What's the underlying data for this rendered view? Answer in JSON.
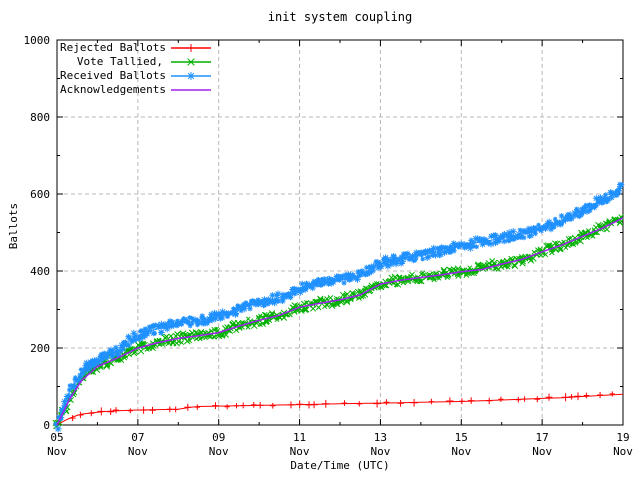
{
  "chart_data": {
    "type": "line",
    "title": "init system coupling",
    "xlabel": "Date/Time (UTC)",
    "ylabel": "Ballots",
    "ylim": [
      0,
      1000
    ],
    "xlim_days": [
      0,
      14
    ],
    "grid": true,
    "legend_position": "top-left-inside",
    "y_ticks": [
      0,
      200,
      400,
      600,
      800,
      1000
    ],
    "y_minor_ticks": [
      100,
      300,
      500,
      700,
      900
    ],
    "x_ticks": [
      {
        "day": 0,
        "label_day": "05",
        "label_month": "Nov"
      },
      {
        "day": 2,
        "label_day": "07",
        "label_month": "Nov"
      },
      {
        "day": 4,
        "label_day": "09",
        "label_month": "Nov"
      },
      {
        "day": 6,
        "label_day": "11",
        "label_month": "Nov"
      },
      {
        "day": 8,
        "label_day": "13",
        "label_month": "Nov"
      },
      {
        "day": 10,
        "label_day": "15",
        "label_month": "Nov"
      },
      {
        "day": 12,
        "label_day": "17",
        "label_month": "Nov"
      },
      {
        "day": 14,
        "label_day": "19",
        "label_month": "Nov"
      }
    ],
    "x_minor_tick_days": [
      1,
      3,
      5,
      7,
      9,
      11,
      13
    ],
    "colors": {
      "background": "#ffffff",
      "axis": "#000000",
      "grid": "#b8b8b8",
      "text": "#000000"
    },
    "series": [
      {
        "name": "Rejected Ballots",
        "color": "#ff0000",
        "marker": "plus",
        "band": false,
        "points": [
          [
            0,
            0
          ],
          [
            0.1,
            6
          ],
          [
            0.2,
            12
          ],
          [
            0.3,
            17
          ],
          [
            0.4,
            21
          ],
          [
            0.5,
            25
          ],
          [
            0.6,
            28
          ],
          [
            0.8,
            31
          ],
          [
            1,
            33
          ],
          [
            1.2,
            35
          ],
          [
            1.5,
            37
          ],
          [
            2,
            39
          ],
          [
            2.5,
            40
          ],
          [
            3,
            41
          ],
          [
            3.3,
            46
          ],
          [
            3.5,
            48
          ],
          [
            4,
            49
          ],
          [
            4.5,
            50
          ],
          [
            5,
            51
          ],
          [
            5.5,
            52
          ],
          [
            6,
            53
          ],
          [
            6.5,
            54
          ],
          [
            7,
            55
          ],
          [
            7.5,
            56
          ],
          [
            8,
            57
          ],
          [
            8.5,
            58
          ],
          [
            9,
            59
          ],
          [
            9.5,
            60
          ],
          [
            10,
            61
          ],
          [
            10.5,
            63
          ],
          [
            11,
            65
          ],
          [
            11.5,
            67
          ],
          [
            12,
            69
          ],
          [
            12.5,
            71
          ],
          [
            13,
            74
          ],
          [
            13.5,
            77
          ],
          [
            14,
            80
          ]
        ]
      },
      {
        "name": "Vote Tallied,",
        "color": "#00b000",
        "marker": "cross",
        "band": true,
        "points": [
          [
            0,
            0
          ],
          [
            0.1,
            22
          ],
          [
            0.2,
            45
          ],
          [
            0.3,
            65
          ],
          [
            0.4,
            85
          ],
          [
            0.5,
            100
          ],
          [
            0.6,
            115
          ],
          [
            0.7,
            128
          ],
          [
            0.8,
            138
          ],
          [
            0.9,
            146
          ],
          [
            1,
            152
          ],
          [
            1.2,
            162
          ],
          [
            1.4,
            170
          ],
          [
            1.6,
            178
          ],
          [
            1.7,
            186
          ],
          [
            1.8,
            193
          ],
          [
            2,
            200
          ],
          [
            2.2,
            206
          ],
          [
            2.4,
            211
          ],
          [
            2.6,
            216
          ],
          [
            2.8,
            221
          ],
          [
            3,
            225
          ],
          [
            3.2,
            228
          ],
          [
            3.4,
            231
          ],
          [
            3.6,
            234
          ],
          [
            3.8,
            237
          ],
          [
            4,
            240
          ],
          [
            4.2,
            247
          ],
          [
            4.4,
            254
          ],
          [
            4.6,
            260
          ],
          [
            4.8,
            266
          ],
          [
            5,
            272
          ],
          [
            5.2,
            277
          ],
          [
            5.4,
            282
          ],
          [
            5.6,
            288
          ],
          [
            5.8,
            296
          ],
          [
            6,
            306
          ],
          [
            6.2,
            311
          ],
          [
            6.4,
            315
          ],
          [
            6.6,
            318
          ],
          [
            6.8,
            321
          ],
          [
            7,
            325
          ],
          [
            7.2,
            330
          ],
          [
            7.4,
            335
          ],
          [
            7.6,
            342
          ],
          [
            7.8,
            353
          ],
          [
            8,
            366
          ],
          [
            8.2,
            370
          ],
          [
            8.4,
            374
          ],
          [
            8.6,
            377
          ],
          [
            8.8,
            380
          ],
          [
            9,
            383
          ],
          [
            9.2,
            386
          ],
          [
            9.4,
            389
          ],
          [
            9.6,
            392
          ],
          [
            9.8,
            395
          ],
          [
            10,
            398
          ],
          [
            10.2,
            402
          ],
          [
            10.4,
            406
          ],
          [
            10.6,
            410
          ],
          [
            10.8,
            414
          ],
          [
            11,
            418
          ],
          [
            11.2,
            422
          ],
          [
            11.4,
            427
          ],
          [
            11.6,
            432
          ],
          [
            11.8,
            440
          ],
          [
            12,
            450
          ],
          [
            12.2,
            457
          ],
          [
            12.4,
            464
          ],
          [
            12.6,
            472
          ],
          [
            12.8,
            480
          ],
          [
            13,
            490
          ],
          [
            13.2,
            499
          ],
          [
            13.4,
            508
          ],
          [
            13.6,
            517
          ],
          [
            13.8,
            527
          ],
          [
            14,
            540
          ]
        ]
      },
      {
        "name": "Received Ballots",
        "color": "#1e90ff",
        "marker": "asterisk",
        "band": true,
        "points": [
          [
            0,
            0
          ],
          [
            0.1,
            30
          ],
          [
            0.2,
            60
          ],
          [
            0.3,
            85
          ],
          [
            0.4,
            105
          ],
          [
            0.5,
            120
          ],
          [
            0.6,
            135
          ],
          [
            0.7,
            148
          ],
          [
            0.8,
            158
          ],
          [
            0.9,
            165
          ],
          [
            1,
            172
          ],
          [
            1.2,
            180
          ],
          [
            1.4,
            188
          ],
          [
            1.6,
            196
          ],
          [
            1.7,
            210
          ],
          [
            1.8,
            222
          ],
          [
            2,
            233
          ],
          [
            2.2,
            240
          ],
          [
            2.4,
            247
          ],
          [
            2.6,
            252
          ],
          [
            2.8,
            258
          ],
          [
            3,
            263
          ],
          [
            3.2,
            267
          ],
          [
            3.4,
            270
          ],
          [
            3.6,
            273
          ],
          [
            3.8,
            277
          ],
          [
            4,
            281
          ],
          [
            4.2,
            290
          ],
          [
            4.4,
            298
          ],
          [
            4.6,
            305
          ],
          [
            4.8,
            311
          ],
          [
            5,
            317
          ],
          [
            5.2,
            323
          ],
          [
            5.4,
            328
          ],
          [
            5.6,
            334
          ],
          [
            5.8,
            342
          ],
          [
            6,
            356
          ],
          [
            6.2,
            362
          ],
          [
            6.4,
            366
          ],
          [
            6.6,
            369
          ],
          [
            6.8,
            372
          ],
          [
            7,
            376
          ],
          [
            7.2,
            381
          ],
          [
            7.4,
            386
          ],
          [
            7.6,
            395
          ],
          [
            7.8,
            408
          ],
          [
            8,
            420
          ],
          [
            8.2,
            425
          ],
          [
            8.4,
            429
          ],
          [
            8.6,
            433
          ],
          [
            8.8,
            437
          ],
          [
            9,
            441
          ],
          [
            9.2,
            445
          ],
          [
            9.4,
            449
          ],
          [
            9.6,
            453
          ],
          [
            9.8,
            459
          ],
          [
            10,
            466
          ],
          [
            10.2,
            470
          ],
          [
            10.4,
            474
          ],
          [
            10.6,
            477
          ],
          [
            10.8,
            481
          ],
          [
            11,
            486
          ],
          [
            11.2,
            490
          ],
          [
            11.4,
            494
          ],
          [
            11.6,
            499
          ],
          [
            11.8,
            505
          ],
          [
            12,
            512
          ],
          [
            12.2,
            519
          ],
          [
            12.4,
            527
          ],
          [
            12.6,
            536
          ],
          [
            12.8,
            546
          ],
          [
            13,
            558
          ],
          [
            13.2,
            570
          ],
          [
            13.4,
            580
          ],
          [
            13.6,
            590
          ],
          [
            13.8,
            602
          ],
          [
            14,
            622
          ]
        ]
      },
      {
        "name": "Acknowledgements",
        "color": "#a020f0",
        "marker": "none",
        "band": false,
        "points": [
          [
            0,
            0
          ],
          [
            0.3,
            65
          ],
          [
            0.6,
            115
          ],
          [
            1,
            152
          ],
          [
            1.5,
            174
          ],
          [
            2,
            200
          ],
          [
            2.5,
            214
          ],
          [
            3,
            225
          ],
          [
            3.5,
            232
          ],
          [
            4,
            240
          ],
          [
            4.5,
            257
          ],
          [
            5,
            272
          ],
          [
            5.5,
            285
          ],
          [
            6,
            306
          ],
          [
            6.5,
            316
          ],
          [
            7,
            325
          ],
          [
            7.5,
            338
          ],
          [
            8,
            366
          ],
          [
            8.5,
            376
          ],
          [
            9,
            383
          ],
          [
            9.5,
            390
          ],
          [
            10,
            398
          ],
          [
            10.5,
            404
          ],
          [
            11,
            418
          ],
          [
            11.5,
            430
          ],
          [
            12,
            450
          ],
          [
            12.5,
            468
          ],
          [
            13,
            490
          ],
          [
            13.5,
            512
          ],
          [
            14,
            538
          ]
        ]
      }
    ]
  }
}
